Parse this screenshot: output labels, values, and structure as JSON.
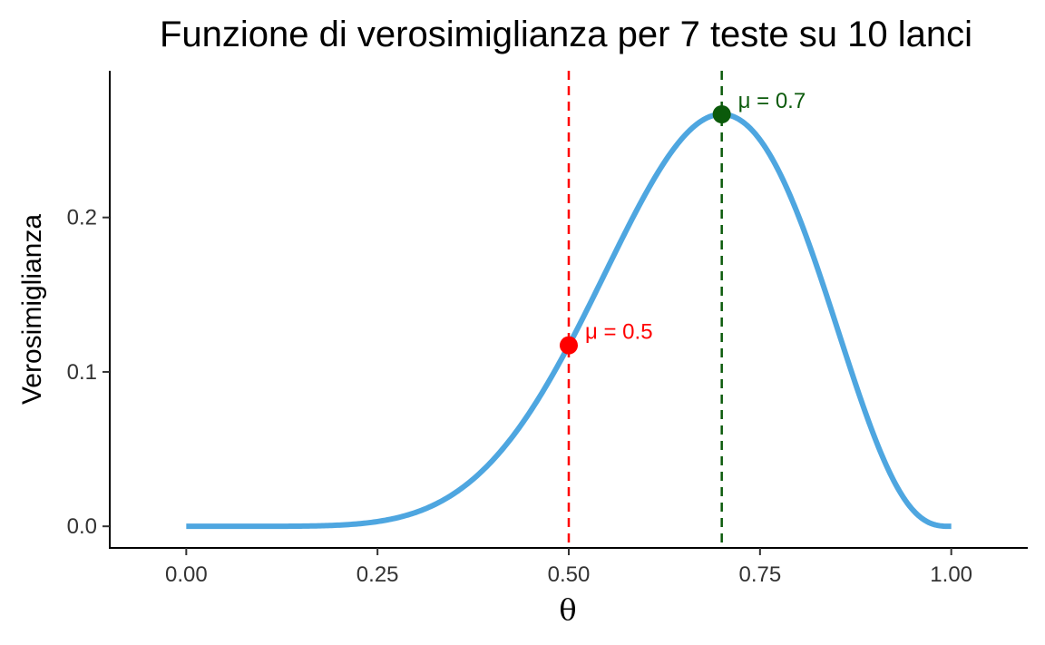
{
  "chart_data": {
    "type": "line",
    "title": "Funzione di verosimiglianza per 7 teste su 10 lanci",
    "xlabel": "θ",
    "ylabel": "Verosimiglianza",
    "xlim": [
      -0.1,
      1.1
    ],
    "ylim": [
      -0.014,
      0.295
    ],
    "x_ticks": [
      0.0,
      0.25,
      0.5,
      0.75,
      1.0
    ],
    "x_tick_labels": [
      "0.00",
      "0.25",
      "0.50",
      "0.75",
      "1.00"
    ],
    "y_ticks": [
      0.0,
      0.1,
      0.2
    ],
    "y_tick_labels": [
      "0.0",
      "0.1",
      "0.2"
    ],
    "grid": false,
    "series": [
      {
        "color": "#4EA6E0",
        "x": [
          0.0,
          0.05,
          0.1,
          0.15,
          0.2,
          0.25,
          0.3,
          0.35,
          0.4,
          0.45,
          0.5,
          0.55,
          0.6,
          0.65,
          0.7,
          0.75,
          0.8,
          0.85,
          0.9,
          0.95,
          1.0
        ],
        "y": [
          0.0,
          0.0,
          0.0,
          0.0001,
          0.0008,
          0.0031,
          0.009,
          0.0212,
          0.0425,
          0.0746,
          0.1172,
          0.1665,
          0.215,
          0.2522,
          0.2668,
          0.2503,
          0.2013,
          0.1298,
          0.0574,
          0.0105,
          0.0
        ]
      }
    ],
    "vlines": [
      {
        "x": 0.5,
        "color": "#FF0000",
        "style": "dashed"
      },
      {
        "x": 0.7,
        "color": "#0B5A0B",
        "style": "dashed"
      }
    ],
    "points": [
      {
        "x": 0.5,
        "y": 0.1172,
        "color": "#FF0000",
        "label": "μ = 0.5"
      },
      {
        "x": 0.7,
        "y": 0.2668,
        "color": "#0B5A0B",
        "label": "μ = 0.7"
      }
    ]
  }
}
